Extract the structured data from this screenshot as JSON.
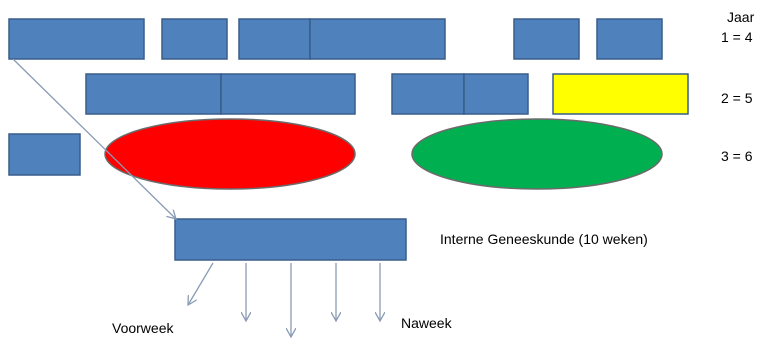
{
  "labels": {
    "jaar": "Jaar",
    "year1": "1 = 4",
    "year2": "2 = 5",
    "year3": "3 = 6",
    "interne": "Interne Geneeskunde (10 weken)",
    "voorweek": "Voorweek",
    "naweek": "Naweek"
  },
  "colors": {
    "block": "#4f81bd",
    "highlight": "#ffff00",
    "red": "#ff0000",
    "green": "#00b050"
  }
}
